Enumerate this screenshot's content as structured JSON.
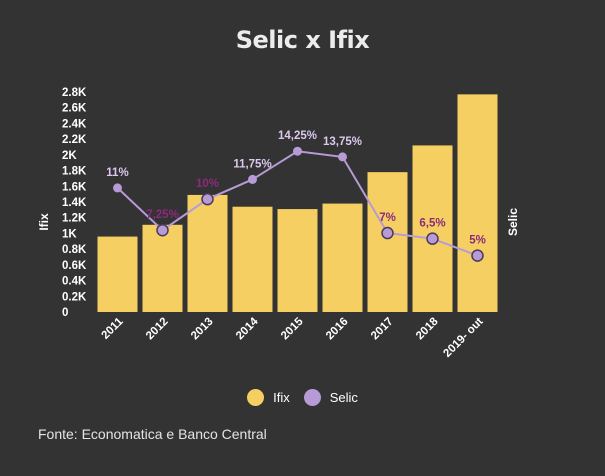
{
  "chart_data": {
    "type": "bar",
    "title": "Selic x Ifix",
    "categories": [
      "2011",
      "2012",
      "2013",
      "2014",
      "2015",
      "2016",
      "2017",
      "2018",
      "2019- out"
    ],
    "series": [
      {
        "name": "Ifix",
        "type": "bar",
        "axis": "left",
        "color": "#f6cf62",
        "values": [
          960,
          1110,
          1490,
          1340,
          1310,
          1380,
          1780,
          2120,
          2770
        ]
      },
      {
        "name": "Selic",
        "type": "line",
        "axis": "right",
        "color": "#b69bd6",
        "values": [
          11,
          7.25,
          10,
          11.75,
          14.25,
          13.75,
          7,
          6.5,
          5
        ],
        "labels": [
          "11%",
          "7,25%",
          "10%",
          "11,75%",
          "14,25%",
          "13,75%",
          "7%",
          "6,5%",
          "5%"
        ]
      }
    ],
    "ylabel": "Ifix",
    "ylabel_right": "Selic",
    "ylim": [
      0,
      2800
    ],
    "y_ticks": [
      0,
      200,
      400,
      600,
      800,
      1000,
      1200,
      1400,
      1600,
      1800,
      2000,
      2200,
      2400,
      2600,
      2800
    ],
    "y_tick_labels": [
      "0",
      "0.2K",
      "0.4K",
      "0.6K",
      "0.8K",
      "1K",
      "1.2K",
      "1.4K",
      "1.6K",
      "1.8K",
      "2K",
      "2.2K",
      "2.4K",
      "2.6K",
      "2.8K"
    ],
    "y2lim": [
      0,
      19.5
    ],
    "legend_position": "bottom",
    "grid": false
  },
  "legend": {
    "ifix_label": "Ifix",
    "selic_label": "Selic"
  },
  "source": "Fonte: Economatica e Banco Central",
  "colors": {
    "background": "#333333",
    "bar": "#f6cf62",
    "line": "#b69bd6",
    "label_dark_bg": "#dcc8f0",
    "label_on_bar": "#8b2a7a"
  }
}
